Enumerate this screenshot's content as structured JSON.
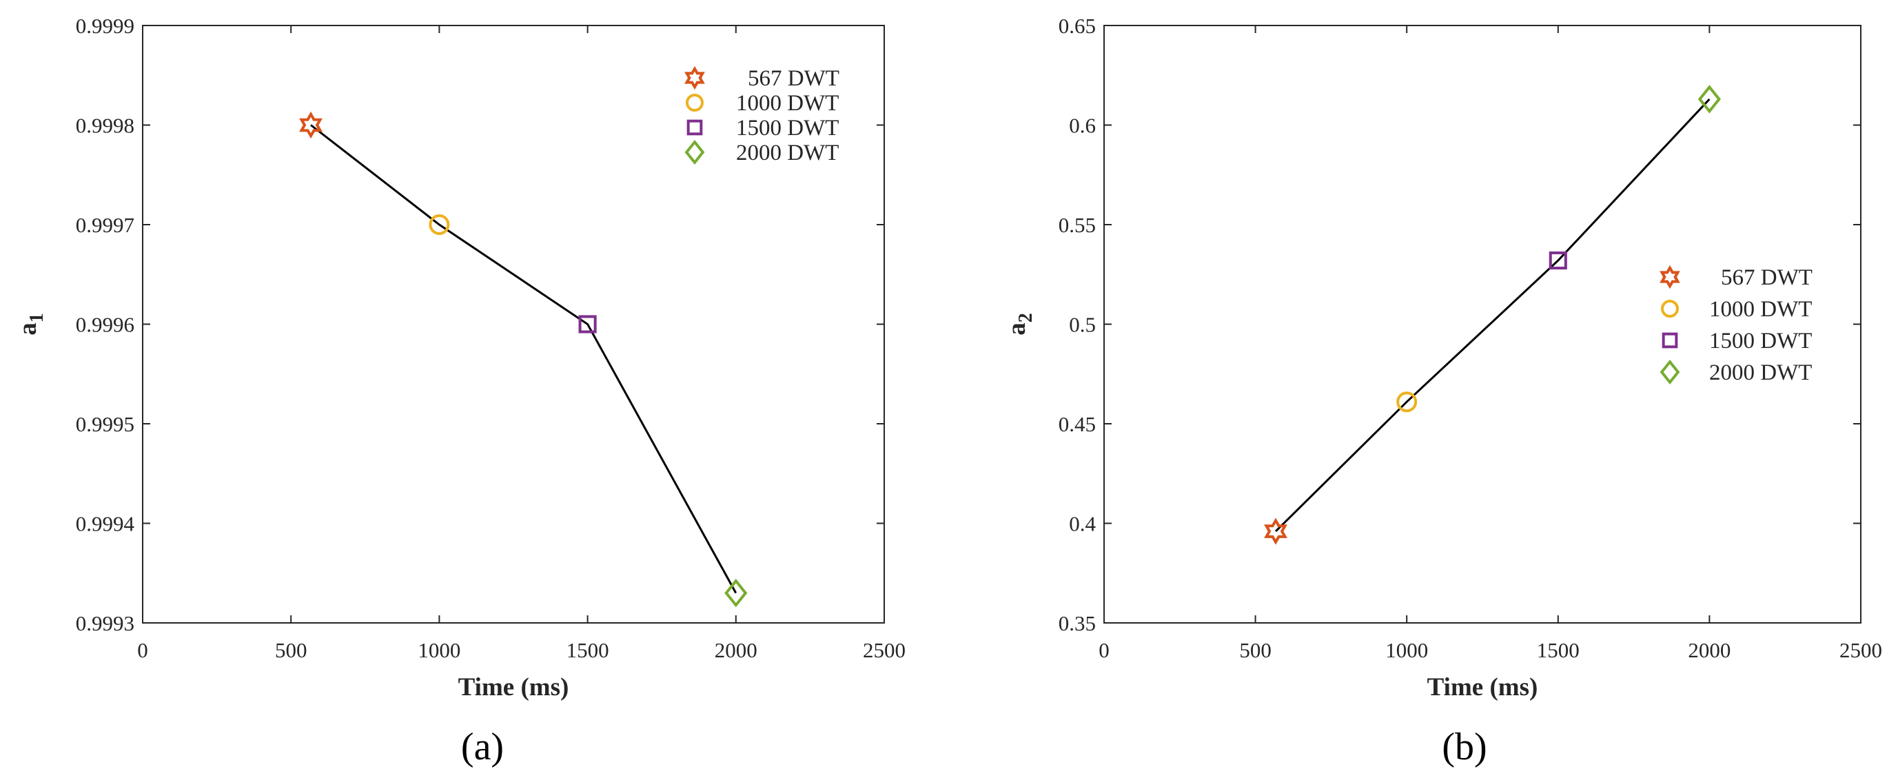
{
  "chart_data": [
    {
      "type": "line",
      "panel_label": "(a)",
      "xlabel": "Time (ms)",
      "ylabel_main": "a",
      "ylabel_sub": "1",
      "xlim": [
        0,
        2500
      ],
      "ylim": [
        0.9993,
        0.9999
      ],
      "xticks": [
        0,
        500,
        1000,
        1500,
        2000,
        2500
      ],
      "xtick_labels": [
        "0",
        "500",
        "1000",
        "1500",
        "2000",
        "2500"
      ],
      "yticks": [
        0.9993,
        0.9994,
        0.9995,
        0.9996,
        0.9997,
        0.9998,
        0.9999
      ],
      "ytick_labels": [
        "0.9993",
        "0.9994",
        "0.9995",
        "0.9996",
        "0.9997",
        "0.9998",
        "0.9999"
      ],
      "legend_position": "top-right",
      "series": [
        {
          "name": "567 DWT",
          "marker": "hexagram",
          "color": "#d95319",
          "x": 567,
          "y": 0.9998
        },
        {
          "name": "1000 DWT",
          "marker": "circle",
          "color": "#edb120",
          "x": 1000,
          "y": 0.9997
        },
        {
          "name": "1500 DWT",
          "marker": "square",
          "color": "#7e2f8e",
          "x": 1500,
          "y": 0.9996
        },
        {
          "name": "2000 DWT",
          "marker": "diamond",
          "color": "#77ac30",
          "x": 2000,
          "y": 0.99933
        }
      ],
      "line_color": "#000000"
    },
    {
      "type": "line",
      "panel_label": "(b)",
      "xlabel": "Time (ms)",
      "ylabel_main": "a",
      "ylabel_sub": "2",
      "xlim": [
        0,
        2500
      ],
      "ylim": [
        0.35,
        0.65
      ],
      "xticks": [
        0,
        500,
        1000,
        1500,
        2000,
        2500
      ],
      "xtick_labels": [
        "0",
        "500",
        "1000",
        "1500",
        "2000",
        "2500"
      ],
      "yticks": [
        0.35,
        0.4,
        0.45,
        0.5,
        0.55,
        0.6,
        0.65
      ],
      "ytick_labels": [
        "0.35",
        "0.4",
        "0.45",
        "0.5",
        "0.55",
        "0.6",
        "0.65"
      ],
      "legend_position": "right",
      "series": [
        {
          "name": "567 DWT",
          "marker": "hexagram",
          "color": "#d95319",
          "x": 567,
          "y": 0.396
        },
        {
          "name": "1000 DWT",
          "marker": "circle",
          "color": "#edb120",
          "x": 1000,
          "y": 0.461
        },
        {
          "name": "1500 DWT",
          "marker": "square",
          "color": "#7e2f8e",
          "x": 1500,
          "y": 0.532
        },
        {
          "name": "2000 DWT",
          "marker": "diamond",
          "color": "#77ac30",
          "x": 2000,
          "y": 0.613
        }
      ],
      "line_color": "#000000"
    }
  ]
}
